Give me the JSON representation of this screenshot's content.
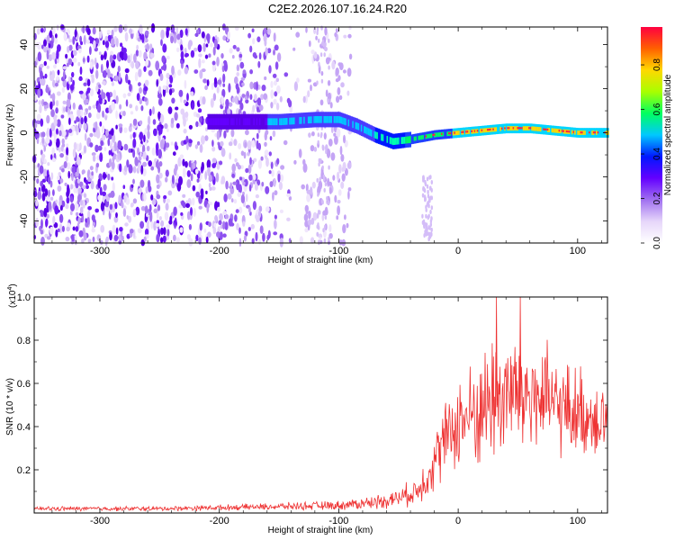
{
  "title": "C2E2.2026.107.16.24.R20",
  "colorbar": {
    "label": "Normalized spectral amplitude",
    "ticks": [
      "0.0",
      "0.2",
      "0.4",
      "0.6",
      "0.8"
    ],
    "tick_values": [
      0.0,
      0.2,
      0.4,
      0.6,
      0.8
    ],
    "range": [
      0,
      0.97
    ],
    "colors": [
      "#ffffff",
      "#e6d6fa",
      "#a070f0",
      "#6400ff",
      "#0018ff",
      "#00c8ff",
      "#00ff60",
      "#a8ff00",
      "#ffd800",
      "#ff6000",
      "#ff0040"
    ]
  },
  "chart_data": [
    {
      "type": "heatmap",
      "name": "spectrogram",
      "xlabel": "Height of straight line (km)",
      "ylabel": "Frequency (Hz)",
      "xlim": [
        -355,
        125
      ],
      "ylim": [
        -50,
        48
      ],
      "xticks": [
        -300,
        -200,
        -100,
        0,
        100
      ],
      "xtick_labels": [
        "-300",
        "-200",
        "-100",
        "0",
        "100"
      ],
      "yticks": [
        -40,
        -20,
        0,
        20,
        40
      ],
      "ytick_labels": [
        "-40",
        "-20",
        "0",
        "20",
        "40"
      ],
      "ridge": [
        [
          -210,
          5
        ],
        [
          -180,
          5
        ],
        [
          -150,
          5
        ],
        [
          -120,
          6
        ],
        [
          -100,
          6
        ],
        [
          -85,
          3
        ],
        [
          -70,
          -1
        ],
        [
          -55,
          -4
        ],
        [
          -40,
          -3
        ],
        [
          -20,
          -1
        ],
        [
          0,
          0
        ],
        [
          20,
          1
        ],
        [
          40,
          2
        ],
        [
          60,
          2
        ],
        [
          80,
          1
        ],
        [
          100,
          0
        ],
        [
          125,
          0
        ]
      ],
      "noise_extent_km": [
        -355,
        -90
      ],
      "grid": false
    },
    {
      "type": "line",
      "name": "snr",
      "xlabel": "Height of straight line (km)",
      "ylabel": "SNR (10 * v/v)",
      "scale_note": "(x10",
      "scale_exp": "4",
      "scale_close": ")",
      "color": "#ee3333",
      "xlim": [
        -355,
        125
      ],
      "ylim": [
        0,
        1.0
      ],
      "xticks": [
        -300,
        -200,
        -100,
        0,
        100
      ],
      "xtick_labels": [
        "-300",
        "-200",
        "-100",
        "0",
        "100"
      ],
      "yticks": [
        0.2,
        0.4,
        0.6,
        0.8,
        1.0
      ],
      "ytick_labels": [
        "0.2",
        "0.4",
        "0.6",
        "0.8",
        "1.0"
      ],
      "envelope": {
        "x": [
          -355,
          -250,
          -200,
          -150,
          -100,
          -70,
          -50,
          -35,
          -25,
          -15,
          -5,
          0,
          10,
          20,
          30,
          40,
          50,
          60,
          70,
          80,
          90,
          100,
          110,
          125
        ],
        "mean": [
          0.02,
          0.02,
          0.025,
          0.03,
          0.035,
          0.05,
          0.07,
          0.1,
          0.18,
          0.3,
          0.38,
          0.42,
          0.45,
          0.48,
          0.55,
          0.55,
          0.55,
          0.55,
          0.52,
          0.5,
          0.48,
          0.47,
          0.45,
          0.44
        ],
        "spread": [
          0.01,
          0.01,
          0.012,
          0.015,
          0.02,
          0.03,
          0.04,
          0.06,
          0.1,
          0.15,
          0.18,
          0.2,
          0.22,
          0.25,
          0.3,
          0.3,
          0.3,
          0.3,
          0.25,
          0.22,
          0.2,
          0.2,
          0.18,
          0.18
        ]
      },
      "peak_points": [
        [
          32,
          1.0
        ],
        [
          52,
          1.0
        ]
      ],
      "grid": false
    }
  ]
}
